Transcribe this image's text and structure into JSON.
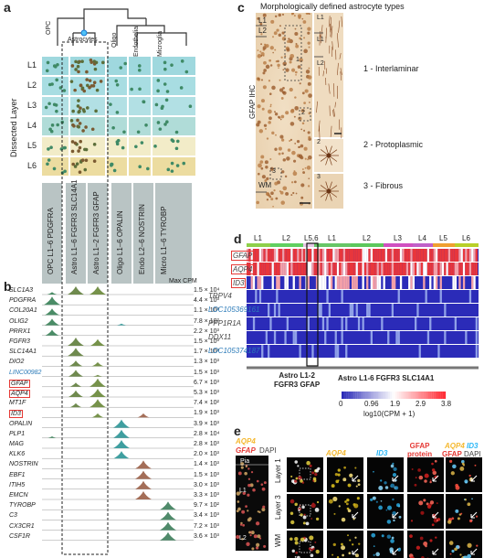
{
  "panel_labels": {
    "a": "a",
    "b": "b",
    "c": "c",
    "d": "d",
    "e": "e"
  },
  "panel_a": {
    "dissected_layer_label": "Dissected Layer",
    "layers": [
      "L1",
      "L2",
      "L3",
      "L4",
      "L5",
      "L6"
    ],
    "tree_labels": [
      "OPC",
      "Astrocytes",
      "Oligo",
      "Endothelial",
      "Microglia"
    ],
    "cell_types": [
      "OPC L1–6 PDGFRA",
      "Astro L1–6 FGFR3 SLC14A1",
      "Astro L1–2 FGFR3 GFAP",
      "Oligo L1–6 OPALIN",
      "Endo L2–6 NOSTRIN",
      "Micro L1–6 TYROBP"
    ]
  },
  "panel_b": {
    "header": "Max CPM",
    "genes": [
      {
        "name": "SLC1A3",
        "cpm": "1.5 × 10⁴",
        "color": "#222",
        "boxed": false
      },
      {
        "name": "PDGFRA",
        "cpm": "4.4 × 10³",
        "color": "#222",
        "boxed": false
      },
      {
        "name": "COL20A1",
        "cpm": "1.1 × 10³",
        "color": "#222",
        "boxed": false
      },
      {
        "name": "OLIG2",
        "cpm": "7.8 × 10²",
        "color": "#222",
        "boxed": false
      },
      {
        "name": "PRRX1",
        "cpm": "2.2 × 10³",
        "color": "#222",
        "boxed": false
      },
      {
        "name": "FGFR3",
        "cpm": "1.5 × 10³",
        "color": "#222",
        "boxed": false
      },
      {
        "name": "SLC14A1",
        "cpm": "1.7 × 10³",
        "color": "#222",
        "boxed": false
      },
      {
        "name": "DIO2",
        "cpm": "1.3 × 10³",
        "color": "#222",
        "boxed": false
      },
      {
        "name": "LINC00982",
        "cpm": "1.5 × 10³",
        "color": "#2a7ab8",
        "boxed": false
      },
      {
        "name": "GFAP",
        "cpm": "6.7 × 10³",
        "color": "#222",
        "boxed": true
      },
      {
        "name": "AQP4",
        "cpm": "5.3 × 10³",
        "color": "#222",
        "boxed": true
      },
      {
        "name": "MT1F",
        "cpm": "7.4 × 10²",
        "color": "#222",
        "boxed": false
      },
      {
        "name": "ID3",
        "cpm": "1.9 × 10³",
        "color": "#222",
        "boxed": true
      },
      {
        "name": "OPALIN",
        "cpm": "3.9 × 10³",
        "color": "#222",
        "boxed": false
      },
      {
        "name": "PLP1",
        "cpm": "2.8 × 10⁴",
        "color": "#222",
        "boxed": false
      },
      {
        "name": "MAG",
        "cpm": "2.8 × 10³",
        "color": "#222",
        "boxed": false
      },
      {
        "name": "KLK6",
        "cpm": "2.0 × 10³",
        "color": "#222",
        "boxed": false
      },
      {
        "name": "NOSTRIN",
        "cpm": "1.4 × 10³",
        "color": "#222",
        "boxed": false
      },
      {
        "name": "EBF1",
        "cpm": "1.5 × 10³",
        "color": "#222",
        "boxed": false
      },
      {
        "name": "ITIH5",
        "cpm": "3.0 × 10³",
        "color": "#222",
        "boxed": false
      },
      {
        "name": "EMCN",
        "cpm": "3.3 × 10³",
        "color": "#222",
        "boxed": false
      },
      {
        "name": "TYROBP",
        "cpm": "9.7 × 10²",
        "color": "#222",
        "boxed": false
      },
      {
        "name": "C3",
        "cpm": "3.4 × 10³",
        "color": "#222",
        "boxed": false
      },
      {
        "name": "CX3CR1",
        "cpm": "7.2 × 10³",
        "color": "#222",
        "boxed": false
      },
      {
        "name": "CSF1R",
        "cpm": "3.6 × 10³",
        "color": "#222",
        "boxed": false
      }
    ]
  },
  "panel_c": {
    "title": "Morphologically defined astrocyte types",
    "stain_label": "GFAP IHC",
    "layer_labels": [
      "L1",
      "L2",
      "WM"
    ],
    "inset_labels": [
      "L1",
      "L1",
      "L2"
    ],
    "box_numbers": [
      "1",
      "2",
      "3"
    ],
    "types": [
      "1 - Interlaminar",
      "2 - Protoplasmic",
      "3 - Fibrous"
    ]
  },
  "panel_d": {
    "layers": [
      "L1",
      "L2",
      "L5,6",
      "L1",
      "L2",
      "L3",
      "L4",
      "L5",
      "L6"
    ],
    "layer_colors": [
      "#8ed04a",
      "#60d060",
      "#e8c8e8",
      "#66c666",
      "#5cc85c",
      "#d050c0",
      "#c060c8",
      "#f0a030",
      "#b8d028"
    ],
    "genes": [
      {
        "name": "GFAP",
        "color": "#444",
        "boxed": true
      },
      {
        "name": "AQP4",
        "color": "#444",
        "boxed": true
      },
      {
        "name": "ID3",
        "color": "#444",
        "boxed": true
      },
      {
        "name": "TRPV4",
        "color": "#444",
        "boxed": false
      },
      {
        "name": "LOC105369161",
        "color": "#2a7ab8",
        "boxed": false
      },
      {
        "name": "PPP1R1A",
        "color": "#444",
        "boxed": false
      },
      {
        "name": "DDX11",
        "color": "#444",
        "boxed": false
      },
      {
        "name": "LOC105374187",
        "color": "#2a7ab8",
        "boxed": false
      }
    ],
    "group_left": "Astro L1-2\nFGFR3 GFAP",
    "group_right": "Astro L1-6 FGFR3 SLC14A1",
    "colorbar_ticks": [
      "0",
      "0.96",
      "1.9",
      "2.9",
      "3.8"
    ],
    "colorbar_label": "log10(CPM + 1)"
  },
  "panel_e": {
    "left_labels": {
      "aqp4": "AQP4",
      "gfap": "GFAP",
      "dapi": "DAPI"
    },
    "pia_label": "Pia",
    "l1_label": "L1",
    "l2_label": "L2",
    "row_labels": [
      "Layer 1",
      "Layer 3",
      "WM"
    ],
    "col_headers": {
      "aqp4": "AQP4",
      "id3": "ID3",
      "gfap_protein": "GFAP\nprotein",
      "merge_aqp4": "AQP4",
      "merge_id3": "ID3",
      "merge_gfap": "GFAP",
      "merge_dapi": "DAPI"
    }
  }
}
